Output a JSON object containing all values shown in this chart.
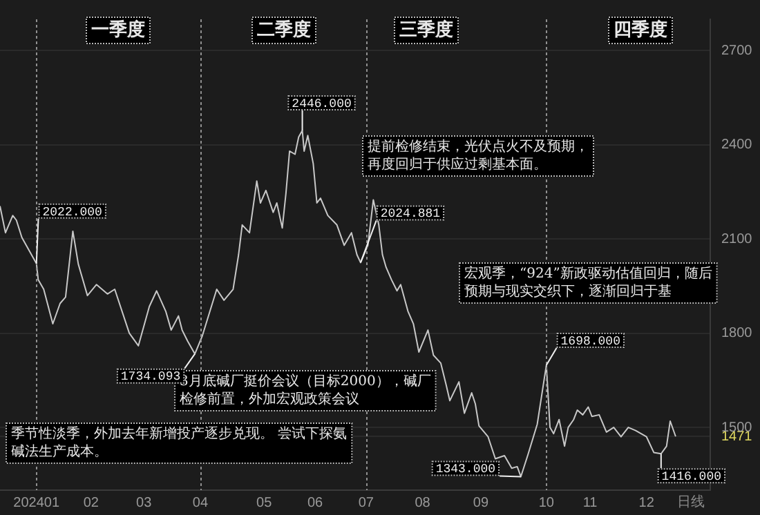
{
  "chart_data": {
    "type": "line",
    "x": [
      "2023-12-13",
      "2023-12-16",
      "2023-12-20",
      "2023-12-22",
      "2023-12-25",
      "2024-01-02",
      "2024-01-03",
      "2024-01-06",
      "2024-01-11",
      "2024-01-15",
      "2024-01-18",
      "2024-01-22",
      "2024-01-25",
      "2024-01-27",
      "2024-01-30",
      "2024-02-04",
      "2024-02-10",
      "2024-02-14",
      "2024-02-22",
      "2024-02-27",
      "2024-03-04",
      "2024-03-08",
      "2024-03-13",
      "2024-03-16",
      "2024-03-20",
      "2024-03-22",
      "2024-03-25",
      "2024-03-29",
      "2024-04-02",
      "2024-04-10",
      "2024-04-14",
      "2024-04-19",
      "2024-04-22",
      "2024-04-24",
      "2024-04-28",
      "2024-05-02",
      "2024-05-04",
      "2024-05-07",
      "2024-05-11",
      "2024-05-13",
      "2024-05-16",
      "2024-05-18",
      "2024-05-20",
      "2024-05-23",
      "2024-05-25",
      "2024-05-27",
      "2024-05-28",
      "2024-05-30",
      "2024-06-02",
      "2024-06-04",
      "2024-06-06",
      "2024-06-10",
      "2024-06-15",
      "2024-06-19",
      "2024-06-23",
      "2024-06-26",
      "2024-06-28",
      "2024-07-02",
      "2024-07-05",
      "2024-07-08",
      "2024-07-10",
      "2024-07-12",
      "2024-07-15",
      "2024-07-18",
      "2024-07-20",
      "2024-07-24",
      "2024-07-27",
      "2024-07-30",
      "2024-08-04",
      "2024-08-07",
      "2024-08-11",
      "2024-08-14",
      "2024-08-16",
      "2024-08-21",
      "2024-08-24",
      "2024-08-28",
      "2024-08-30",
      "2024-09-01",
      "2024-09-06",
      "2024-09-10",
      "2024-09-15",
      "2024-09-19",
      "2024-09-22",
      "2024-09-24",
      "2024-09-28",
      "2024-10-03",
      "2024-10-08",
      "2024-10-10",
      "2024-10-12",
      "2024-10-15",
      "2024-10-18",
      "2024-10-20",
      "2024-10-23",
      "2024-10-25",
      "2024-10-28",
      "2024-10-31",
      "2024-11-02",
      "2024-11-06",
      "2024-11-10",
      "2024-11-14",
      "2024-11-18",
      "2024-11-22",
      "2024-11-26",
      "2024-12-02",
      "2024-12-06",
      "2024-12-10",
      "2024-12-13",
      "2024-12-15",
      "2024-12-18"
    ],
    "series": [
      {
        "color": "#c8c8c8",
        "values": [
          2205,
          2120,
          2175,
          2160,
          2105,
          2022,
          1970,
          1940,
          1830,
          1895,
          1915,
          2125,
          2020,
          1980,
          1920,
          1955,
          1925,
          1940,
          1800,
          1760,
          1885,
          1935,
          1870,
          1810,
          1855,
          1810,
          1775,
          1734.093,
          1790,
          1940,
          1905,
          1940,
          2050,
          2145,
          2120,
          2285,
          2215,
          2255,
          2185,
          2215,
          2135,
          2245,
          2380,
          2370,
          2425,
          2446,
          2380,
          2430,
          2340,
          2215,
          2230,
          2175,
          2145,
          2080,
          2120,
          2050,
          2024.881,
          2080,
          2225,
          2145,
          2050,
          2010,
          1970,
          1935,
          1955,
          1870,
          1830,
          1740,
          1810,
          1730,
          1705,
          1635,
          1585,
          1645,
          1545,
          1610,
          1575,
          1505,
          1470,
          1400,
          1410,
          1370,
          1375,
          1343,
          1415,
          1510,
          1698,
          1500,
          1480,
          1525,
          1440,
          1500,
          1525,
          1555,
          1540,
          1565,
          1535,
          1540,
          1485,
          1500,
          1470,
          1500,
          1490,
          1470,
          1420,
          1416,
          1440,
          1520,
          1471
        ]
      }
    ],
    "xlim": [
      "2023-12-13",
      "2025-01-06"
    ],
    "xticks": [
      {
        "value": "2024-01-02",
        "label": "202401"
      },
      {
        "value": "2024-02-01",
        "label": "02"
      },
      {
        "value": "2024-03-01",
        "label": "03"
      },
      {
        "value": "2024-04-01",
        "label": "04"
      },
      {
        "value": "2024-05-06",
        "label": "05"
      },
      {
        "value": "2024-06-03",
        "label": "06"
      },
      {
        "value": "2024-07-01",
        "label": "07"
      },
      {
        "value": "2024-08-01",
        "label": "08"
      },
      {
        "value": "2024-09-02",
        "label": "09"
      },
      {
        "value": "2024-10-08",
        "label": "10"
      },
      {
        "value": "2024-11-01",
        "label": "11"
      },
      {
        "value": "2024-12-02",
        "label": "12"
      }
    ],
    "ylim": [
      1300,
      2800
    ],
    "yticks": [
      {
        "value": 1471,
        "label": "1471"
      },
      1500,
      1800,
      2100,
      2400,
      2700
    ],
    "grid": "y",
    "legend": false,
    "ref_lines": [
      {
        "axis": "x",
        "value": "2024-01-02",
        "color": "#909090",
        "line_style": "dashed"
      },
      {
        "axis": "x",
        "value": "2024-04-01",
        "color": "#909090",
        "line_style": "dashed"
      },
      {
        "axis": "x",
        "value": "2024-07-01",
        "color": "#909090",
        "line_style": "dashed"
      },
      {
        "axis": "x",
        "value": "2024-10-08",
        "color": "#909090",
        "line_style": "dashed"
      }
    ],
    "annotations": [
      "一季度",
      "二季度",
      "三季度",
      "四季度",
      "季节性淡季，外加去年新增投产逐步兑现。 尝试下探氨碱法生产成本。",
      "3月底碱厂挺价会议（目标2000），碱厂检修前置，外加宏观政策会议",
      "提前检修结束，光伏点火不及预期，再度回归于供应过剩基本面。",
      "宏观季，“924”新政驱动估值回归，随后预期与现实交织下，逐渐回归于基",
      "日线",
      {
        "text": "2022.000",
        "x": "2024-01-02",
        "y": 2022
      },
      {
        "text": "1734.093",
        "x": "2024-03-29",
        "y": 1734.093
      },
      {
        "text": "2446.000",
        "x": "2024-05-27",
        "y": 2446
      },
      {
        "text": "2024.881",
        "x": "2024-06-28",
        "y": 2024.881
      },
      {
        "text": "1343.000",
        "x": "2024-09-24",
        "y": 1343
      },
      {
        "text": "1698.000",
        "x": "2024-10-08",
        "y": 1698
      },
      {
        "text": "1416.000",
        "x": "2024-12-10",
        "y": 1416
      }
    ]
  }
}
